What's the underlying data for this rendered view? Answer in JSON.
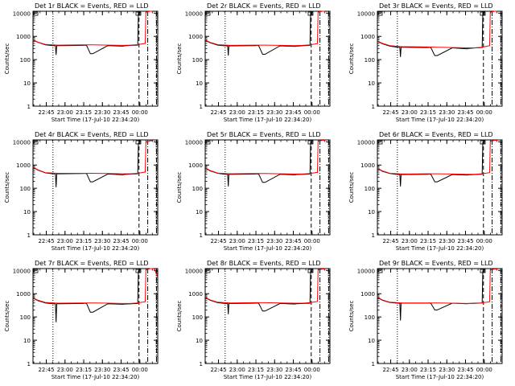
{
  "page": {
    "background": "#ffffff"
  },
  "colors": {
    "events": "#000000",
    "lld": "#ff0000",
    "frame": "#000000"
  },
  "common": {
    "ylabel": "Counts/sec",
    "xlabel": "Start Time (17-Jul-10 22:34:20)",
    "xticks": [
      "22:45",
      "23:00",
      "23:15",
      "23:30",
      "23:45",
      "00:00"
    ],
    "yticks": [
      "1",
      "10",
      "100",
      "1000",
      "10000"
    ],
    "yscale": "log",
    "ylim": [
      1,
      12000
    ],
    "xlim_minutes_after_start": [
      0,
      100
    ]
  },
  "chart_data": [
    {
      "title": "Det 1r BLACK = Events, RED = LLD",
      "type": "line",
      "yscale": "log",
      "series": [
        {
          "name": "Events",
          "color": "#000000",
          "x": [
            0,
            4,
            10,
            16,
            18,
            18.5,
            19,
            22,
            40,
            42,
            43,
            46,
            48,
            60,
            72,
            73,
            79,
            84,
            84.5
          ],
          "y": [
            700,
            550,
            430,
            400,
            400,
            160,
            400,
            400,
            410,
            420,
            400,
            180,
            180,
            400,
            380,
            390,
            410,
            420,
            11000
          ]
        },
        {
          "name": "LLD",
          "color": "#ff0000",
          "x": [
            0,
            4,
            10,
            20,
            40,
            48,
            60,
            72,
            78,
            84,
            85,
            90,
            90.5,
            94,
            96
          ],
          "y": [
            720,
            560,
            450,
            420,
            430,
            430,
            420,
            410,
            420,
            440,
            450,
            500,
            11000,
            12000,
            12000
          ]
        }
      ],
      "markers": [
        {
          "style": "dotted",
          "x": 16
        },
        {
          "style": "dashed",
          "x": 85
        },
        {
          "style": "dash-dot",
          "x": 92
        },
        {
          "style": "dash-dot",
          "x": 99
        }
      ]
    },
    {
      "title": "Det 2r BLACK = Events, RED = LLD",
      "type": "line",
      "yscale": "log",
      "series": [
        {
          "name": "Events",
          "color": "#000000",
          "x": [
            0,
            4,
            10,
            16,
            18,
            18.5,
            19,
            22,
            40,
            42,
            43,
            46,
            48,
            60,
            72,
            73,
            79,
            84,
            84.5
          ],
          "y": [
            680,
            530,
            420,
            390,
            390,
            150,
            390,
            390,
            400,
            410,
            390,
            170,
            170,
            390,
            370,
            380,
            400,
            410,
            11000
          ]
        },
        {
          "name": "LLD",
          "color": "#ff0000",
          "x": [
            0,
            4,
            10,
            20,
            40,
            48,
            60,
            72,
            78,
            84,
            85,
            90,
            90.5,
            94,
            96
          ],
          "y": [
            700,
            550,
            440,
            410,
            420,
            420,
            410,
            400,
            410,
            430,
            440,
            490,
            11000,
            12000,
            12000
          ]
        }
      ],
      "markers": [
        {
          "style": "dotted",
          "x": 16
        },
        {
          "style": "dashed",
          "x": 85
        },
        {
          "style": "dash-dot",
          "x": 92
        },
        {
          "style": "dash-dot",
          "x": 99
        }
      ]
    },
    {
      "title": "Det 3r BLACK = Events, RED = LLD",
      "type": "line",
      "yscale": "log",
      "series": [
        {
          "name": "Events",
          "color": "#000000",
          "x": [
            0,
            4,
            10,
            16,
            18,
            18.5,
            19,
            22,
            40,
            42,
            43,
            46,
            48,
            60,
            72,
            73,
            79,
            84,
            84.5
          ],
          "y": [
            620,
            480,
            380,
            340,
            340,
            130,
            340,
            340,
            330,
            340,
            320,
            150,
            150,
            320,
            290,
            300,
            320,
            330,
            11000
          ]
        },
        {
          "name": "LLD",
          "color": "#ff0000",
          "x": [
            0,
            4,
            10,
            20,
            40,
            48,
            60,
            72,
            78,
            84,
            85,
            90,
            90.5,
            94,
            96
          ],
          "y": [
            640,
            500,
            400,
            360,
            350,
            340,
            330,
            320,
            320,
            340,
            350,
            400,
            11000,
            12000,
            12000
          ]
        }
      ],
      "markers": [
        {
          "style": "dotted",
          "x": 16
        },
        {
          "style": "dashed",
          "x": 85
        },
        {
          "style": "dash-dot",
          "x": 92
        },
        {
          "style": "dash-dot",
          "x": 99
        }
      ]
    },
    {
      "title": "Det 4r BLACK = Events, RED = LLD",
      "type": "line",
      "yscale": "log",
      "series": [
        {
          "name": "Events",
          "color": "#000000",
          "x": [
            0,
            4,
            10,
            16,
            18,
            18.5,
            19,
            22,
            40,
            42,
            43,
            46,
            48,
            60,
            72,
            73,
            79,
            84,
            84.5
          ],
          "y": [
            800,
            600,
            460,
            420,
            420,
            110,
            420,
            420,
            430,
            440,
            420,
            190,
            190,
            410,
            380,
            390,
            410,
            420,
            9000
          ]
        },
        {
          "name": "LLD",
          "color": "#ff0000",
          "x": [
            0,
            4,
            10,
            20,
            40,
            48,
            60,
            72,
            78,
            84,
            85,
            90,
            90.5,
            94,
            96
          ],
          "y": [
            820,
            620,
            470,
            440,
            440,
            440,
            430,
            420,
            420,
            440,
            450,
            500,
            9500,
            11000,
            11000
          ]
        }
      ],
      "markers": [
        {
          "style": "dotted",
          "x": 16
        },
        {
          "style": "dashed",
          "x": 85
        },
        {
          "style": "dash-dot",
          "x": 92
        },
        {
          "style": "dash-dot",
          "x": 99
        }
      ]
    },
    {
      "title": "Det 5r BLACK = Events, RED = LLD",
      "type": "line",
      "yscale": "log",
      "series": [
        {
          "name": "Events",
          "color": "#000000",
          "x": [
            0,
            4,
            10,
            16,
            18,
            18.5,
            19,
            22,
            40,
            42,
            43,
            46,
            48,
            60,
            72,
            73,
            79,
            84,
            84.5
          ],
          "y": [
            750,
            560,
            440,
            400,
            400,
            120,
            400,
            400,
            410,
            420,
            400,
            180,
            180,
            400,
            380,
            390,
            400,
            410,
            10000
          ]
        },
        {
          "name": "LLD",
          "color": "#ff0000",
          "x": [
            0,
            4,
            10,
            20,
            40,
            48,
            60,
            72,
            78,
            84,
            85,
            90,
            90.5,
            94,
            96
          ],
          "y": [
            770,
            580,
            450,
            420,
            430,
            430,
            420,
            410,
            410,
            430,
            440,
            480,
            10500,
            11500,
            11500
          ]
        }
      ],
      "markers": [
        {
          "style": "dotted",
          "x": 16
        },
        {
          "style": "dashed",
          "x": 85
        },
        {
          "style": "dash-dot",
          "x": 92
        },
        {
          "style": "dash-dot",
          "x": 99
        }
      ]
    },
    {
      "title": "Det 6r BLACK = Events, RED = LLD",
      "type": "line",
      "yscale": "log",
      "series": [
        {
          "name": "Events",
          "color": "#000000",
          "x": [
            0,
            4,
            10,
            16,
            18,
            18.5,
            19,
            22,
            40,
            42,
            43,
            46,
            48,
            60,
            72,
            73,
            79,
            84,
            84.5
          ],
          "y": [
            720,
            540,
            430,
            390,
            390,
            120,
            390,
            390,
            400,
            410,
            390,
            190,
            190,
            390,
            370,
            380,
            390,
            400,
            10000
          ]
        },
        {
          "name": "LLD",
          "color": "#ff0000",
          "x": [
            0,
            4,
            10,
            20,
            40,
            48,
            60,
            72,
            78,
            84,
            85,
            90,
            90.5,
            94,
            96
          ],
          "y": [
            740,
            560,
            440,
            410,
            420,
            420,
            410,
            400,
            400,
            420,
            430,
            470,
            10500,
            11500,
            11500
          ]
        }
      ],
      "markers": [
        {
          "style": "dotted",
          "x": 16
        },
        {
          "style": "dashed",
          "x": 85
        },
        {
          "style": "dash-dot",
          "x": 92
        },
        {
          "style": "dash-dot",
          "x": 99
        }
      ]
    },
    {
      "title": "Det 7r BLACK = Events, RED = LLD",
      "type": "line",
      "yscale": "log",
      "series": [
        {
          "name": "Events",
          "color": "#000000",
          "x": [
            0,
            4,
            10,
            16,
            18,
            18.5,
            19,
            22,
            40,
            42,
            43,
            46,
            48,
            60,
            72,
            73,
            79,
            84,
            84.5
          ],
          "y": [
            650,
            500,
            400,
            370,
            370,
            60,
            370,
            370,
            380,
            390,
            370,
            160,
            160,
            370,
            350,
            360,
            370,
            380,
            10000
          ]
        },
        {
          "name": "LLD",
          "color": "#ff0000",
          "x": [
            0,
            4,
            10,
            20,
            40,
            48,
            60,
            72,
            78,
            84,
            85,
            90,
            90.5,
            94,
            96,
            97.5,
            100
          ],
          "y": [
            670,
            520,
            420,
            390,
            400,
            400,
            390,
            380,
            380,
            400,
            410,
            450,
            10500,
            12000,
            12000,
            11500,
            5000
          ]
        }
      ],
      "markers": [
        {
          "style": "dotted",
          "x": 16
        },
        {
          "style": "dashed",
          "x": 85
        },
        {
          "style": "dash-dot",
          "x": 92
        },
        {
          "style": "dash-dot",
          "x": 99
        }
      ]
    },
    {
      "title": "Det 8r BLACK = Events, RED = LLD",
      "type": "line",
      "yscale": "log",
      "series": [
        {
          "name": "Events",
          "color": "#000000",
          "x": [
            0,
            4,
            10,
            16,
            18,
            18.5,
            19,
            22,
            40,
            42,
            43,
            46,
            48,
            60,
            72,
            73,
            79,
            84,
            84.5
          ],
          "y": [
            680,
            520,
            410,
            380,
            380,
            130,
            380,
            380,
            390,
            400,
            380,
            180,
            180,
            380,
            360,
            370,
            380,
            390,
            10000
          ]
        },
        {
          "name": "LLD",
          "color": "#ff0000",
          "x": [
            0,
            4,
            10,
            20,
            40,
            48,
            60,
            72,
            78,
            84,
            85,
            90,
            90.5,
            94,
            96
          ],
          "y": [
            700,
            540,
            430,
            400,
            410,
            410,
            400,
            390,
            390,
            410,
            420,
            460,
            10500,
            11500,
            11500
          ]
        }
      ],
      "markers": [
        {
          "style": "dotted",
          "x": 16
        },
        {
          "style": "dashed",
          "x": 85
        },
        {
          "style": "dash-dot",
          "x": 92
        },
        {
          "style": "dash-dot",
          "x": 99
        }
      ]
    },
    {
      "title": "Det 9r BLACK = Events, RED = LLD",
      "type": "line",
      "yscale": "log",
      "series": [
        {
          "name": "Events",
          "color": "#000000",
          "x": [
            0,
            4,
            10,
            16,
            18,
            18.5,
            19,
            22,
            40,
            42,
            43,
            46,
            48,
            60,
            72,
            73,
            79,
            84,
            84.5
          ],
          "y": [
            700,
            520,
            420,
            390,
            390,
            70,
            390,
            390,
            390,
            400,
            380,
            200,
            200,
            390,
            370,
            380,
            390,
            400,
            10000
          ]
        },
        {
          "name": "LLD",
          "color": "#ff0000",
          "x": [
            0,
            4,
            10,
            20,
            40,
            48,
            60,
            72,
            78,
            84,
            85,
            90,
            90.5,
            94,
            96
          ],
          "y": [
            720,
            540,
            430,
            400,
            400,
            400,
            390,
            380,
            380,
            400,
            410,
            450,
            10500,
            11500,
            11500
          ]
        }
      ],
      "markers": [
        {
          "style": "dotted",
          "x": 16
        },
        {
          "style": "dashed",
          "x": 85
        },
        {
          "style": "dash-dot",
          "x": 92
        },
        {
          "style": "dash-dot",
          "x": 99
        }
      ]
    }
  ]
}
